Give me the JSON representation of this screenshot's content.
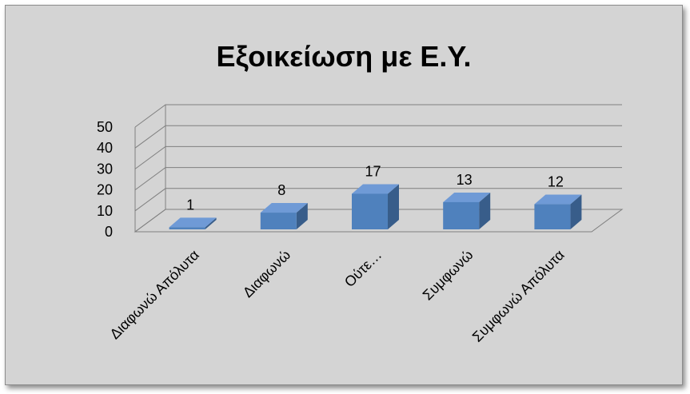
{
  "chart_data": {
    "type": "bar",
    "title": "Εξοικείωση με Ε.Υ.",
    "categories": [
      "Διαφωνώ Απόλυτα",
      "Διαφωνώ",
      "Ούτε…",
      "Συμφωνώ",
      "Συμφωνώ Απόλυτα"
    ],
    "values": [
      1,
      8,
      17,
      13,
      12
    ],
    "data_labels": [
      "1",
      "8",
      "17",
      "13",
      "12"
    ],
    "y_ticks": [
      "0",
      "10",
      "20",
      "30",
      "40",
      "50"
    ],
    "ylim": [
      0,
      50
    ],
    "grid": true,
    "legend": "none",
    "colors": {
      "bar_front": "#4f81bd",
      "bar_top": "#6f9ad6",
      "bar_side": "#385d8a",
      "background": "#d4d4d4",
      "grid": "#7f7f7f"
    }
  }
}
